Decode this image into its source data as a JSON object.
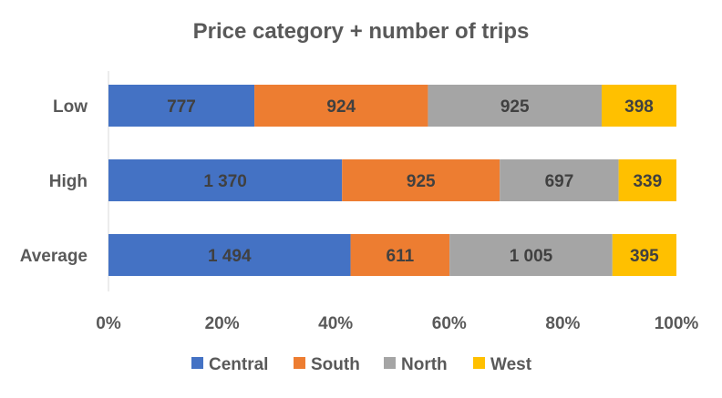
{
  "chart_data": {
    "type": "bar",
    "orientation": "horizontal",
    "stacking": "percent",
    "title": "Price category + number of trips",
    "categories": [
      "Low",
      "High",
      "Average"
    ],
    "series": [
      {
        "name": "Central",
        "color": "#4472C4",
        "values": [
          777,
          1370,
          1494
        ],
        "labels": [
          "777",
          "1 370",
          "1 494"
        ]
      },
      {
        "name": "South",
        "color": "#ED7D31",
        "values": [
          924,
          925,
          611
        ],
        "labels": [
          "924",
          "925",
          "611"
        ]
      },
      {
        "name": "North",
        "color": "#A5A5A5",
        "values": [
          925,
          697,
          1005
        ],
        "labels": [
          "925",
          "697",
          "1 005"
        ]
      },
      {
        "name": "West",
        "color": "#FFC000",
        "values": [
          398,
          339,
          395
        ],
        "labels": [
          "398",
          "339",
          "395"
        ]
      }
    ],
    "x_ticks": [
      "0%",
      "20%",
      "40%",
      "60%",
      "80%",
      "100%"
    ],
    "xlim": [
      0,
      100
    ],
    "grid": false,
    "legend_position": "bottom"
  }
}
